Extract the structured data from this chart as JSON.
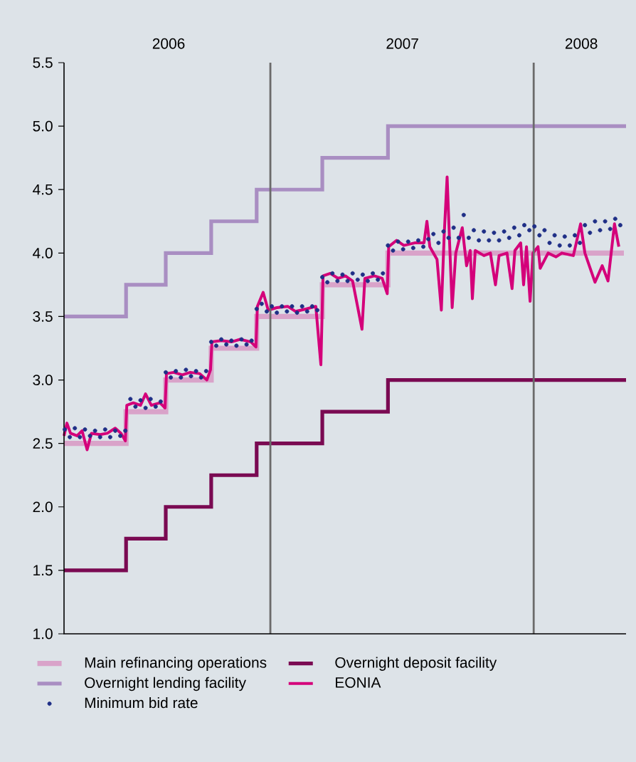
{
  "chart_data": {
    "type": "line",
    "xlim": [
      "2006-03-21",
      "2008-05-08"
    ],
    "xticks": [
      {
        "value": "2006-08-13",
        "label": "2006"
      },
      {
        "value": "2007-07-03",
        "label": "2007"
      },
      {
        "value": "2008-03-07",
        "label": "2008"
      }
    ],
    "ylim": [
      1.0,
      5.5
    ],
    "yticks": [
      {
        "value": 1,
        "label": "1.0"
      },
      1.5,
      {
        "value": 2,
        "label": "2.0"
      },
      2.5,
      {
        "value": 3,
        "label": "3.0"
      },
      3.5,
      {
        "value": 4,
        "label": "4.0"
      },
      4.5,
      {
        "value": 5,
        "label": "5.0"
      },
      5.5
    ],
    "legend": "bottom",
    "ref_lines": [
      {
        "axis": "x",
        "value": "2007-01-01",
        "color": "#6b6b6b"
      },
      {
        "axis": "x",
        "value": "2008-01-01",
        "color": "#6b6b6b"
      }
    ],
    "series": [
      {
        "name": "Main refinancing operations",
        "type": "step",
        "color": "#d9a3c9",
        "x": [
          "2006-03-21",
          "2006-06-15",
          "2006-08-09",
          "2006-10-11",
          "2006-12-13",
          "2007-03-14",
          "2007-06-13",
          "2008-05-05"
        ],
        "values": [
          2.5,
          2.75,
          3.0,
          3.25,
          3.5,
          3.75,
          4.0,
          4.0
        ]
      },
      {
        "name": "Overnight deposit facility",
        "type": "step",
        "color": "#7a0a52",
        "x": [
          "2006-03-21",
          "2006-06-15",
          "2006-08-09",
          "2006-10-11",
          "2006-12-13",
          "2007-03-14",
          "2007-06-13",
          "2008-05-08"
        ],
        "values": [
          1.5,
          1.75,
          2.0,
          2.25,
          2.5,
          2.75,
          3.0,
          3.0
        ]
      },
      {
        "name": "Overnight lending facility",
        "type": "step",
        "color": "#a98ec2",
        "x": [
          "2006-03-21",
          "2006-06-15",
          "2006-08-09",
          "2006-10-11",
          "2006-12-13",
          "2007-03-14",
          "2007-06-13",
          "2008-05-08"
        ],
        "values": [
          3.5,
          3.75,
          4.0,
          4.25,
          4.5,
          4.75,
          5.0,
          5.0
        ]
      },
      {
        "name": "EONIA",
        "color": "#d4007a",
        "x": [
          "2006-03-21",
          "2006-03-25",
          "2006-03-30",
          "2006-04-08",
          "2006-04-15",
          "2006-04-22",
          "2006-04-28",
          "2006-05-10",
          "2006-05-20",
          "2006-05-31",
          "2006-06-08",
          "2006-06-14",
          "2006-06-16",
          "2006-06-25",
          "2006-07-05",
          "2006-07-12",
          "2006-07-20",
          "2006-08-01",
          "2006-08-08",
          "2006-08-10",
          "2006-08-20",
          "2006-09-01",
          "2006-09-12",
          "2006-09-25",
          "2006-10-05",
          "2006-10-10",
          "2006-10-12",
          "2006-10-25",
          "2006-11-08",
          "2006-11-20",
          "2006-12-05",
          "2006-12-12",
          "2006-12-14",
          "2006-12-22",
          "2006-12-29",
          "2007-01-10",
          "2007-01-25",
          "2007-02-05",
          "2007-02-20",
          "2007-03-05",
          "2007-03-12",
          "2007-03-15",
          "2007-03-25",
          "2007-04-05",
          "2007-04-15",
          "2007-04-25",
          "2007-05-08",
          "2007-05-12",
          "2007-05-25",
          "2007-06-05",
          "2007-06-12",
          "2007-06-14",
          "2007-06-25",
          "2007-07-05",
          "2007-07-20",
          "2007-08-02",
          "2007-08-06",
          "2007-08-10",
          "2007-08-20",
          "2007-08-26",
          "2007-08-30",
          "2007-09-03",
          "2007-09-07",
          "2007-09-10",
          "2007-09-15",
          "2007-09-24",
          "2007-09-30",
          "2007-10-05",
          "2007-10-08",
          "2007-10-12",
          "2007-10-24",
          "2007-11-02",
          "2007-11-09",
          "2007-11-14",
          "2007-11-25",
          "2007-12-02",
          "2007-12-06",
          "2007-12-14",
          "2007-12-18",
          "2007-12-22",
          "2007-12-27",
          "2007-12-31",
          "2008-01-07",
          "2008-01-10",
          "2008-01-21",
          "2008-02-01",
          "2008-02-09",
          "2008-02-25",
          "2008-03-06",
          "2008-03-12",
          "2008-03-26",
          "2008-04-05",
          "2008-04-13",
          "2008-04-22",
          "2008-04-28"
        ],
        "values": [
          2.56,
          2.66,
          2.58,
          2.56,
          2.6,
          2.45,
          2.58,
          2.57,
          2.58,
          2.62,
          2.58,
          2.52,
          2.8,
          2.82,
          2.8,
          2.89,
          2.8,
          2.82,
          2.78,
          3.05,
          3.06,
          3.04,
          3.06,
          3.05,
          3.0,
          3.08,
          3.3,
          3.31,
          3.3,
          3.32,
          3.3,
          3.26,
          3.58,
          3.69,
          3.55,
          3.57,
          3.58,
          3.54,
          3.56,
          3.58,
          3.12,
          3.82,
          3.84,
          3.8,
          3.82,
          3.78,
          3.4,
          3.8,
          3.82,
          3.8,
          3.68,
          4.05,
          4.1,
          4.06,
          4.08,
          4.08,
          4.25,
          4.05,
          3.95,
          3.55,
          4.15,
          4.6,
          4.0,
          3.57,
          4.0,
          4.2,
          3.9,
          4.02,
          3.64,
          4.02,
          3.98,
          4.0,
          3.75,
          3.98,
          4.0,
          3.72,
          4.02,
          4.08,
          3.75,
          4.05,
          3.62,
          4.0,
          4.05,
          3.88,
          4.0,
          3.97,
          4.0,
          3.98,
          4.23,
          4.0,
          3.77,
          3.9,
          3.78,
          4.23,
          4.05
        ]
      },
      {
        "name": "Minimum bid rate",
        "type": "scatter",
        "marker": "circle",
        "color": "#1f2f86",
        "x": [
          "2006-03-22",
          "2006-03-29",
          "2006-04-05",
          "2006-04-12",
          "2006-04-19",
          "2006-04-26",
          "2006-05-03",
          "2006-05-10",
          "2006-05-17",
          "2006-05-24",
          "2006-05-31",
          "2006-06-07",
          "2006-06-14",
          "2006-06-21",
          "2006-06-28",
          "2006-07-05",
          "2006-07-12",
          "2006-07-19",
          "2006-07-26",
          "2006-08-02",
          "2006-08-09",
          "2006-08-16",
          "2006-08-23",
          "2006-08-30",
          "2006-09-06",
          "2006-09-13",
          "2006-09-20",
          "2006-09-27",
          "2006-10-04",
          "2006-10-11",
          "2006-10-18",
          "2006-10-25",
          "2006-11-01",
          "2006-11-08",
          "2006-11-15",
          "2006-11-22",
          "2006-11-29",
          "2006-12-06",
          "2006-12-13",
          "2006-12-20",
          "2006-12-27",
          "2007-01-03",
          "2007-01-10",
          "2007-01-17",
          "2007-01-24",
          "2007-01-31",
          "2007-02-07",
          "2007-02-14",
          "2007-02-21",
          "2007-02-28",
          "2007-03-07",
          "2007-03-14",
          "2007-03-21",
          "2007-03-28",
          "2007-04-04",
          "2007-04-11",
          "2007-04-18",
          "2007-04-25",
          "2007-05-02",
          "2007-05-09",
          "2007-05-16",
          "2007-05-23",
          "2007-05-30",
          "2007-06-06",
          "2007-06-13",
          "2007-06-20",
          "2007-06-27",
          "2007-07-04",
          "2007-07-11",
          "2007-07-18",
          "2007-07-25",
          "2007-08-01",
          "2007-08-08",
          "2007-08-15",
          "2007-08-22",
          "2007-08-29",
          "2007-09-05",
          "2007-09-12",
          "2007-09-19",
          "2007-09-26",
          "2007-10-03",
          "2007-10-10",
          "2007-10-17",
          "2007-10-24",
          "2007-10-31",
          "2007-11-07",
          "2007-11-14",
          "2007-11-21",
          "2007-11-28",
          "2007-12-05",
          "2007-12-12",
          "2007-12-19",
          "2007-12-26",
          "2008-01-02",
          "2008-01-09",
          "2008-01-16",
          "2008-01-23",
          "2008-01-30",
          "2008-02-06",
          "2008-02-13",
          "2008-02-20",
          "2008-02-27",
          "2008-03-05",
          "2008-03-12",
          "2008-03-19",
          "2008-03-26",
          "2008-04-02",
          "2008-04-09",
          "2008-04-16",
          "2008-04-23",
          "2008-04-30"
        ],
        "values": [
          2.61,
          2.55,
          2.62,
          2.55,
          2.61,
          2.56,
          2.6,
          2.55,
          2.61,
          2.55,
          2.6,
          2.56,
          2.6,
          2.85,
          2.79,
          2.84,
          2.78,
          2.85,
          2.79,
          2.83,
          3.06,
          3.02,
          3.07,
          3.02,
          3.08,
          3.03,
          3.07,
          3.02,
          3.07,
          3.3,
          3.27,
          3.32,
          3.28,
          3.31,
          3.27,
          3.32,
          3.28,
          3.31,
          3.56,
          3.6,
          3.54,
          3.58,
          3.53,
          3.58,
          3.54,
          3.58,
          3.53,
          3.58,
          3.54,
          3.58,
          3.55,
          3.81,
          3.77,
          3.84,
          3.78,
          3.83,
          3.78,
          3.84,
          3.79,
          3.83,
          3.78,
          3.84,
          3.79,
          3.84,
          4.06,
          4.02,
          4.09,
          4.03,
          4.09,
          4.04,
          4.1,
          4.05,
          4.11,
          4.15,
          4.08,
          4.17,
          4.12,
          4.2,
          4.12,
          4.3,
          4.12,
          4.18,
          4.1,
          4.17,
          4.1,
          4.16,
          4.1,
          4.17,
          4.12,
          4.2,
          4.14,
          4.22,
          4.18,
          4.21,
          4.14,
          4.18,
          4.08,
          4.14,
          4.06,
          4.13,
          4.06,
          4.14,
          4.08,
          4.22,
          4.16,
          4.25,
          4.18,
          4.25,
          4.19,
          4.27,
          4.22
        ]
      }
    ]
  }
}
